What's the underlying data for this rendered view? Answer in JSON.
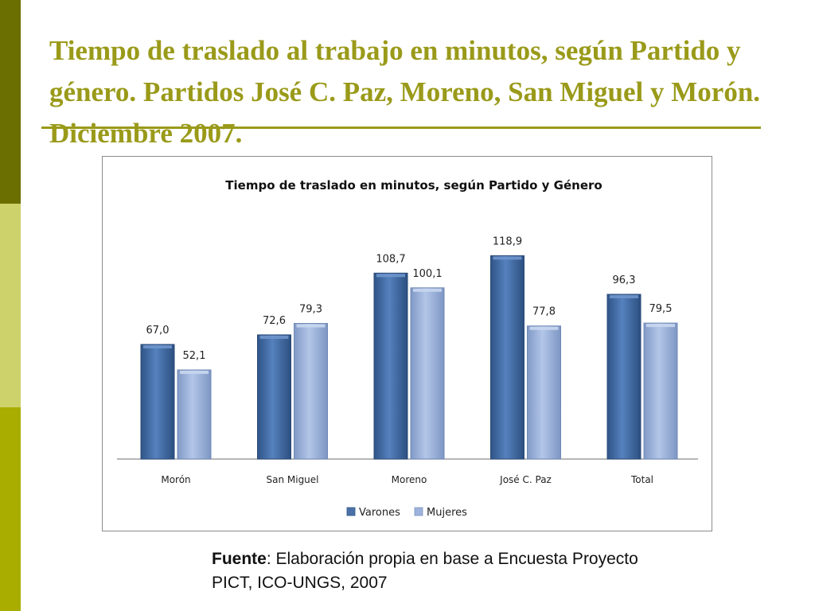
{
  "slide": {
    "title": "Tiempo de traslado al trabajo en minutos, según Partido y género. Partidos José C. Paz, Moreno, San Miguel y Morón. Diciembre 2007."
  },
  "source": {
    "label": "Fuente",
    "text": ": Elaboración propia en base a Encuesta Proyecto PICT, ICO-UNGS, 2007"
  },
  "colors": {
    "title": "#9a9a1a",
    "varones": "#4a72a8",
    "mujeres": "#9db3dc"
  },
  "chart_data": {
    "type": "bar",
    "title": "Tiempo de traslado en minutos, según Partido y Género",
    "categories": [
      "Morón",
      "San Miguel",
      "Moreno",
      "José C. Paz",
      "Total"
    ],
    "series": [
      {
        "name": "Varones",
        "values": [
          67.0,
          72.6,
          108.7,
          118.9,
          96.3
        ],
        "labels": [
          "67,0",
          "72,6",
          "108,7",
          "118,9",
          "96,3"
        ]
      },
      {
        "name": "Mujeres",
        "values": [
          52.1,
          79.3,
          100.1,
          77.8,
          79.5
        ],
        "labels": [
          "52,1",
          "79,3",
          "100,1",
          "77,8",
          "79,5"
        ]
      }
    ],
    "ylim": [
      0,
      140
    ],
    "xlabel": "",
    "ylabel": "",
    "grid": false,
    "legend": "bottom"
  }
}
